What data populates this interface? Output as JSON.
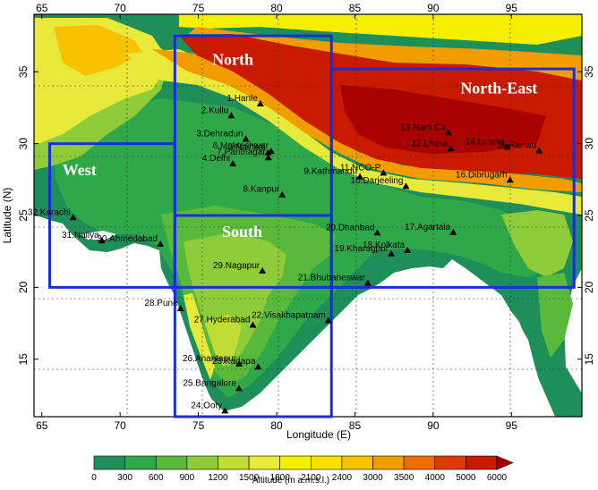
{
  "map": {
    "lon_range": [
      64.5,
      99.5
    ],
    "lat_range": [
      11,
      39
    ],
    "lon_ticks": [
      65,
      70,
      75,
      80,
      85,
      90,
      95
    ],
    "lat_ticks": [
      15,
      20,
      25,
      30,
      35
    ],
    "xlabel": "Longitude (E)",
    "ylabel": "Latitude (N)"
  },
  "regions": [
    {
      "name": "North",
      "lon": [
        73.5,
        83.5
      ],
      "lat": [
        20,
        37.5
      ],
      "label_lon": 77.2,
      "label_lat": 35.5
    },
    {
      "name": "North-East",
      "lon": [
        83.5,
        99
      ],
      "lat": [
        20,
        35.2
      ],
      "label_lon": 94.2,
      "label_lat": 33.5
    },
    {
      "name": "West",
      "lon": [
        65.5,
        73.5
      ],
      "lat": [
        20,
        30
      ],
      "label_lon": 67.4,
      "label_lat": 27.8
    },
    {
      "name": "South",
      "lon": [
        73.5,
        83.5
      ],
      "lat": [
        11,
        25
      ],
      "label_lon": 77.8,
      "label_lat": 23.5
    }
  ],
  "stations": [
    {
      "label": "1.Hanle",
      "lon": 78.96,
      "lat": 32.78
    },
    {
      "label": "2.Kullu",
      "lon": 77.1,
      "lat": 31.95
    },
    {
      "label": "3.Dehradun",
      "lon": 78.03,
      "lat": 30.32
    },
    {
      "label": "4.Delhi",
      "lon": 77.2,
      "lat": 28.61
    },
    {
      "label": "5.Nainital",
      "lon": 79.45,
      "lat": 29.38
    },
    {
      "label": "6.Mukteshwar",
      "lon": 79.65,
      "lat": 29.47
    },
    {
      "label": "7.Pantnagar",
      "lon": 79.47,
      "lat": 29.03
    },
    {
      "label": "8.Kanpur",
      "lon": 80.35,
      "lat": 26.45
    },
    {
      "label": "9.Kathmandu",
      "lon": 85.32,
      "lat": 27.7
    },
    {
      "label": "10.Darjeeling",
      "lon": 88.26,
      "lat": 27.04
    },
    {
      "label": "11.NCO-P",
      "lon": 86.82,
      "lat": 27.96
    },
    {
      "label": "12.Lhasa",
      "lon": 91.13,
      "lat": 29.65
    },
    {
      "label": "13.Nam Co",
      "lon": 90.96,
      "lat": 30.77
    },
    {
      "label": "14.Lulang",
      "lon": 94.73,
      "lat": 29.77
    },
    {
      "label": "15.Ranwu",
      "lon": 96.77,
      "lat": 29.5
    },
    {
      "label": "16.Dibrugarh",
      "lon": 94.91,
      "lat": 27.47
    },
    {
      "label": "17.Agartala",
      "lon": 91.28,
      "lat": 23.83
    },
    {
      "label": "18.Kolkata",
      "lon": 88.36,
      "lat": 22.57
    },
    {
      "label": "19.Kharagpur",
      "lon": 87.32,
      "lat": 22.34
    },
    {
      "label": "20.Dhanbad",
      "lon": 86.43,
      "lat": 23.8
    },
    {
      "label": "21.Bhubaneswar",
      "lon": 85.82,
      "lat": 20.3
    },
    {
      "label": "22.Visakhapatnam",
      "lon": 83.3,
      "lat": 17.69
    },
    {
      "label": "23.Kadapa",
      "lon": 78.82,
      "lat": 14.47
    },
    {
      "label": "24.Ooty",
      "lon": 76.7,
      "lat": 11.41
    },
    {
      "label": "25.Bangalore",
      "lon": 77.59,
      "lat": 12.97
    },
    {
      "label": "26.Anantapur",
      "lon": 77.6,
      "lat": 14.68
    },
    {
      "label": "27.Hyderabad",
      "lon": 78.48,
      "lat": 17.38
    },
    {
      "label": "28.Pune",
      "lon": 73.86,
      "lat": 18.52
    },
    {
      "label": "29.Nagapur",
      "lon": 79.09,
      "lat": 21.15
    },
    {
      "label": "30.Ahmedabad",
      "lon": 72.57,
      "lat": 23.02
    },
    {
      "label": "31.Naliya",
      "lon": 68.83,
      "lat": 23.25
    },
    {
      "label": "32.Karachi",
      "lon": 67.0,
      "lat": 24.86
    }
  ],
  "colorbar": {
    "label": "Altitude (m a.m.s.l.)",
    "ticks": [
      "0",
      "300",
      "600",
      "900",
      "1200",
      "1500",
      "1800",
      "2100",
      "2400",
      "3000",
      "3500",
      "4000",
      "5000",
      "6000"
    ],
    "colors": [
      "#1f8f5a",
      "#2fa84a",
      "#58b93a",
      "#8fcc3a",
      "#c2dc36",
      "#e7ea3a",
      "#f4f000",
      "#f7df00",
      "#f8c200",
      "#f39c00",
      "#ec6e00",
      "#dc3b00",
      "#c91a00",
      "#a90000"
    ]
  }
}
